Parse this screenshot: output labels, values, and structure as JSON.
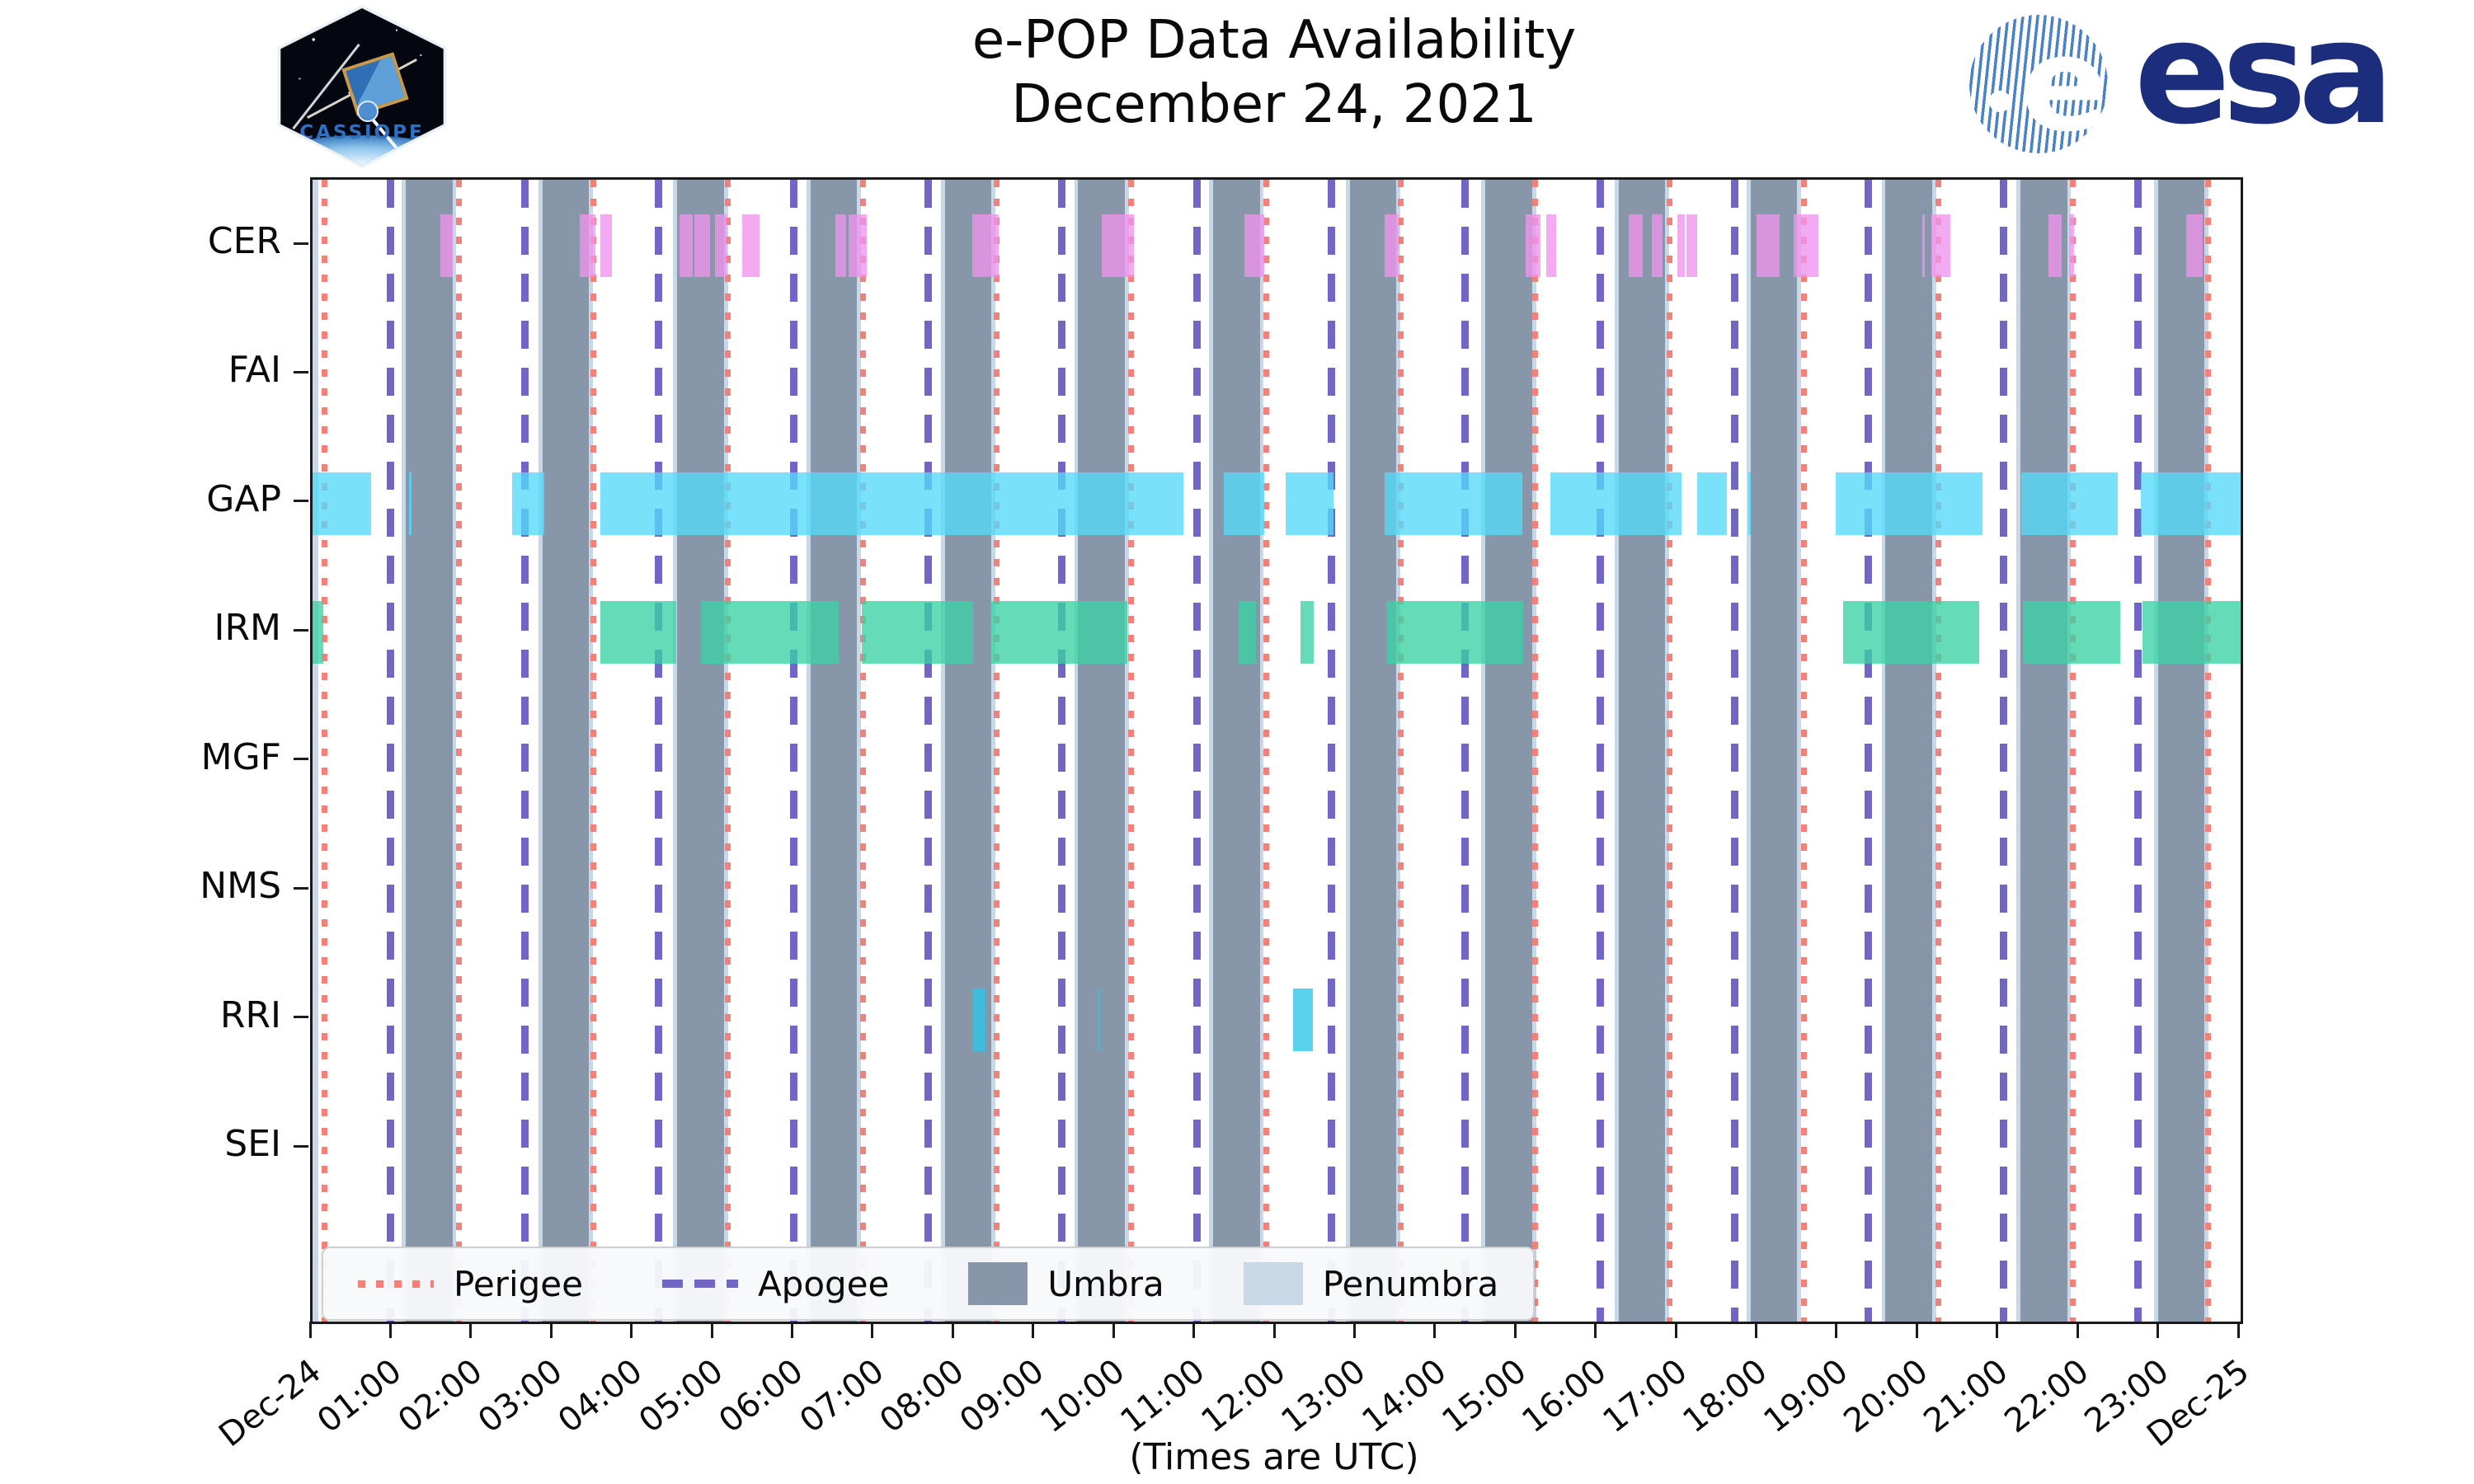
{
  "header": {
    "title_line1": "e-POP Data Availability",
    "title_line2": "December 24, 2021",
    "mission_patch_text": "CASSIOPE",
    "esa_logo_text": "esa",
    "esa_globe_letter": "e"
  },
  "legend": {
    "items": [
      {
        "label": "Perigee",
        "style": "red-dotted-line",
        "color": "#F4807A"
      },
      {
        "label": "Apogee",
        "style": "purple-dashed-line",
        "color": "#7165C6"
      },
      {
        "label": "Umbra",
        "style": "filled-band",
        "color": "#8797A9"
      },
      {
        "label": "Penumbra",
        "style": "filled-band",
        "color": "#C9D8E7"
      }
    ]
  },
  "chart_data": {
    "type": "timeline",
    "title": "e-POP Data Availability December 24, 2021",
    "xlabel": "(Times are UTC)",
    "x_range_hours": [
      0,
      24
    ],
    "x_tick_labels": [
      "Dec-24",
      "01:00",
      "02:00",
      "03:00",
      "04:00",
      "05:00",
      "06:00",
      "07:00",
      "08:00",
      "09:00",
      "10:00",
      "11:00",
      "12:00",
      "13:00",
      "14:00",
      "15:00",
      "16:00",
      "17:00",
      "18:00",
      "19:00",
      "20:00",
      "21:00",
      "22:00",
      "23:00",
      "Dec-25"
    ],
    "rows": [
      "CER",
      "FAI",
      "GAP",
      "IRM",
      "MGF",
      "NMS",
      "RRI",
      "SEI"
    ],
    "colors": {
      "CER": "#EE93EC",
      "GAP": "#53DAF8",
      "IRM": "#3BD1A4",
      "RRI": "#2CC5E8",
      "umbra": "#8797A9",
      "penumbra": "#C9D8E7",
      "perigee": "#F4807A",
      "apogee": "#7165C6"
    },
    "availability_intervals_hours": {
      "CER": [
        [
          1.59,
          1.74
        ],
        [
          3.33,
          3.52
        ],
        [
          3.58,
          3.73
        ],
        [
          4.57,
          4.73
        ],
        [
          4.75,
          4.95
        ],
        [
          5.01,
          5.15
        ],
        [
          5.35,
          5.56
        ],
        [
          6.51,
          6.64
        ],
        [
          6.67,
          6.9
        ],
        [
          8.21,
          8.54
        ],
        [
          9.82,
          10.22
        ],
        [
          11.6,
          11.85
        ],
        [
          13.34,
          13.52
        ],
        [
          15.1,
          15.28
        ],
        [
          15.36,
          15.48
        ],
        [
          16.38,
          16.56
        ],
        [
          16.67,
          16.8
        ],
        [
          16.99,
          17.08
        ],
        [
          17.1,
          17.24
        ],
        [
          17.97,
          18.26
        ],
        [
          18.44,
          18.74
        ],
        [
          20.04,
          20.07
        ],
        [
          20.15,
          20.39
        ],
        [
          21.61,
          21.77
        ],
        [
          21.86,
          21.93
        ],
        [
          23.32,
          23.53
        ]
      ],
      "FAI": [],
      "GAP": [
        [
          0.0,
          0.73
        ],
        [
          1.2,
          1.23
        ],
        [
          2.48,
          2.88
        ],
        [
          3.58,
          10.84
        ],
        [
          11.34,
          11.85
        ],
        [
          12.11,
          12.71
        ],
        [
          13.34,
          15.06
        ],
        [
          15.41,
          17.04
        ],
        [
          17.24,
          17.61
        ],
        [
          17.87,
          17.9
        ],
        [
          18.96,
          20.79
        ],
        [
          21.27,
          22.47
        ],
        [
          22.76,
          24.0
        ]
      ],
      "IRM": [
        [
          0.0,
          0.13
        ],
        [
          3.58,
          4.53
        ],
        [
          4.84,
          6.55
        ],
        [
          6.84,
          8.22
        ],
        [
          8.44,
          10.14
        ],
        [
          11.53,
          11.74
        ],
        [
          12.3,
          12.46
        ],
        [
          13.37,
          15.07
        ],
        [
          19.05,
          20.75
        ],
        [
          21.29,
          22.5
        ],
        [
          22.78,
          24.0
        ]
      ],
      "MGF": [],
      "NMS": [],
      "RRI": [
        [
          8.22,
          8.38
        ],
        [
          9.77,
          9.8
        ],
        [
          12.21,
          12.45
        ]
      ],
      "SEI": []
    },
    "perigee_hours": [
      0.15,
      1.82,
      3.5,
      5.17,
      6.85,
      8.52,
      10.19,
      11.87,
      13.54,
      15.22,
      16.89,
      18.56,
      20.24,
      21.91,
      23.59
    ],
    "apogee_hours": [
      0.97,
      2.64,
      4.31,
      5.99,
      7.66,
      9.33,
      11.01,
      12.68,
      14.35,
      16.03,
      17.7,
      19.37,
      21.05,
      22.72
    ],
    "umbra_intervals_hours": [
      [
        1.16,
        1.74
      ],
      [
        2.86,
        3.44
      ],
      [
        4.54,
        5.12
      ],
      [
        6.2,
        6.78
      ],
      [
        7.87,
        8.45
      ],
      [
        9.53,
        10.11
      ],
      [
        11.21,
        11.79
      ],
      [
        12.91,
        13.49
      ],
      [
        14.6,
        15.18
      ],
      [
        16.26,
        16.84
      ],
      [
        17.9,
        18.48
      ],
      [
        19.58,
        20.16
      ],
      [
        21.26,
        21.84
      ],
      [
        22.97,
        23.55
      ]
    ],
    "penumbra_intervals_hours": [
      [
        0.0,
        0.07
      ],
      [
        1.11,
        1.16
      ],
      [
        1.74,
        1.79
      ],
      [
        2.81,
        2.86
      ],
      [
        3.44,
        3.49
      ],
      [
        4.49,
        4.54
      ],
      [
        5.12,
        5.17
      ],
      [
        6.15,
        6.2
      ],
      [
        6.78,
        6.83
      ],
      [
        7.82,
        7.87
      ],
      [
        8.45,
        8.5
      ],
      [
        9.48,
        9.53
      ],
      [
        10.11,
        10.16
      ],
      [
        11.16,
        11.21
      ],
      [
        11.79,
        11.84
      ],
      [
        12.86,
        12.91
      ],
      [
        13.49,
        13.54
      ],
      [
        14.55,
        14.6
      ],
      [
        15.18,
        15.23
      ],
      [
        16.21,
        16.26
      ],
      [
        16.84,
        16.89
      ],
      [
        17.85,
        17.9
      ],
      [
        18.48,
        18.53
      ],
      [
        19.53,
        19.58
      ],
      [
        20.16,
        20.21
      ],
      [
        21.21,
        21.26
      ],
      [
        21.84,
        21.89
      ],
      [
        22.92,
        22.97
      ],
      [
        23.55,
        23.6
      ]
    ],
    "layout": {
      "legend_position": "lower-left-inside",
      "grid": false
    }
  }
}
